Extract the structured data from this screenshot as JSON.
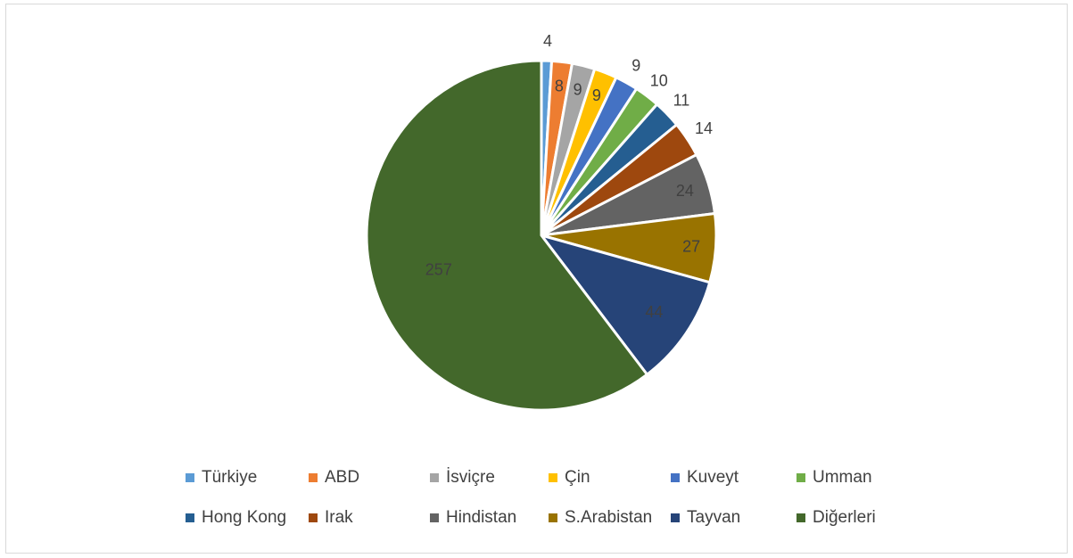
{
  "chart_data": {
    "type": "pie",
    "title": "",
    "slices": [
      {
        "label": "Türkiye",
        "value": 4,
        "color": "#5B9BD5"
      },
      {
        "label": "ABD",
        "value": 8,
        "color": "#ED7D31"
      },
      {
        "label": "İsviçre",
        "value": 9,
        "color": "#A5A5A5"
      },
      {
        "label": "Çin",
        "value": 9,
        "color": "#FFC000"
      },
      {
        "label": "Kuveyt",
        "value": 9,
        "color": "#4472C4"
      },
      {
        "label": "Umman",
        "value": 10,
        "color": "#70AD47"
      },
      {
        "label": "Hong Kong",
        "value": 11,
        "color": "#255E91"
      },
      {
        "label": "Irak",
        "value": 14,
        "color": "#9E480E"
      },
      {
        "label": "Hindistan",
        "value": 24,
        "color": "#636363"
      },
      {
        "label": "S.Arabistan",
        "value": 27,
        "color": "#997300"
      },
      {
        "label": "Tayvan",
        "value": 44,
        "color": "#264478"
      },
      {
        "label": "Diğerleri",
        "value": 257,
        "color": "#43682B"
      }
    ],
    "data_labels": [
      "4",
      "8",
      "9",
      "9",
      "9",
      "10",
      "11",
      "14",
      "24",
      "27",
      "44",
      "257"
    ],
    "legend_position": "bottom"
  }
}
